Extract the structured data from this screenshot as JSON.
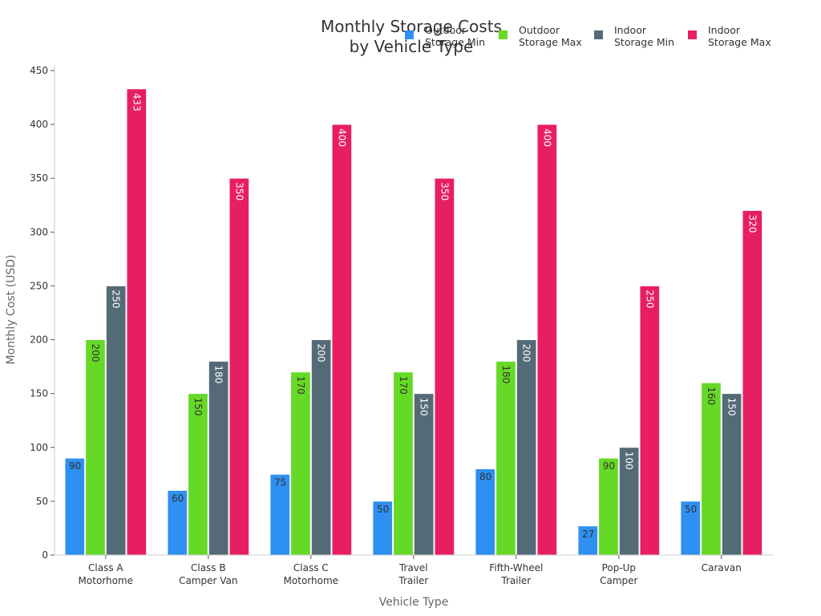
{
  "chart_data": {
    "type": "bar",
    "title_lines": [
      "Monthly Storage Costs",
      "by Vehicle Type"
    ],
    "xlabel": "Vehicle Type",
    "ylabel": "Monthly Cost (USD)",
    "ylim": [
      0,
      450
    ],
    "yticks": [
      0,
      50,
      100,
      150,
      200,
      250,
      300,
      350,
      400,
      450
    ],
    "grid": false,
    "legend_position": "top-right",
    "categories": [
      [
        "Class A",
        "Motorhome"
      ],
      [
        "Class B",
        "Camper Van"
      ],
      [
        "Class C",
        "Motorhome"
      ],
      [
        "Travel",
        "Trailer"
      ],
      [
        "Fifth-Wheel",
        "Trailer"
      ],
      [
        "Pop-Up",
        "Camper"
      ],
      [
        "Caravan"
      ]
    ],
    "series": [
      {
        "name": [
          "Outdoor",
          "Storage Min"
        ],
        "color": "#2e90f0",
        "label_color": "#333333",
        "values": [
          90,
          60,
          75,
          50,
          80,
          27,
          50
        ]
      },
      {
        "name": [
          "Outdoor",
          "Storage Max"
        ],
        "color": "#66d926",
        "label_color": "#333333",
        "values": [
          200,
          150,
          170,
          170,
          180,
          90,
          160
        ]
      },
      {
        "name": [
          "Indoor",
          "Storage Min"
        ],
        "color": "#546b77",
        "label_color": "#ffffff",
        "values": [
          250,
          180,
          200,
          150,
          200,
          100,
          150
        ]
      },
      {
        "name": [
          "Indoor",
          "Storage Max"
        ],
        "color": "#e81e63",
        "label_color": "#ffffff",
        "values": [
          433,
          350,
          400,
          350,
          400,
          250,
          320
        ]
      }
    ]
  }
}
